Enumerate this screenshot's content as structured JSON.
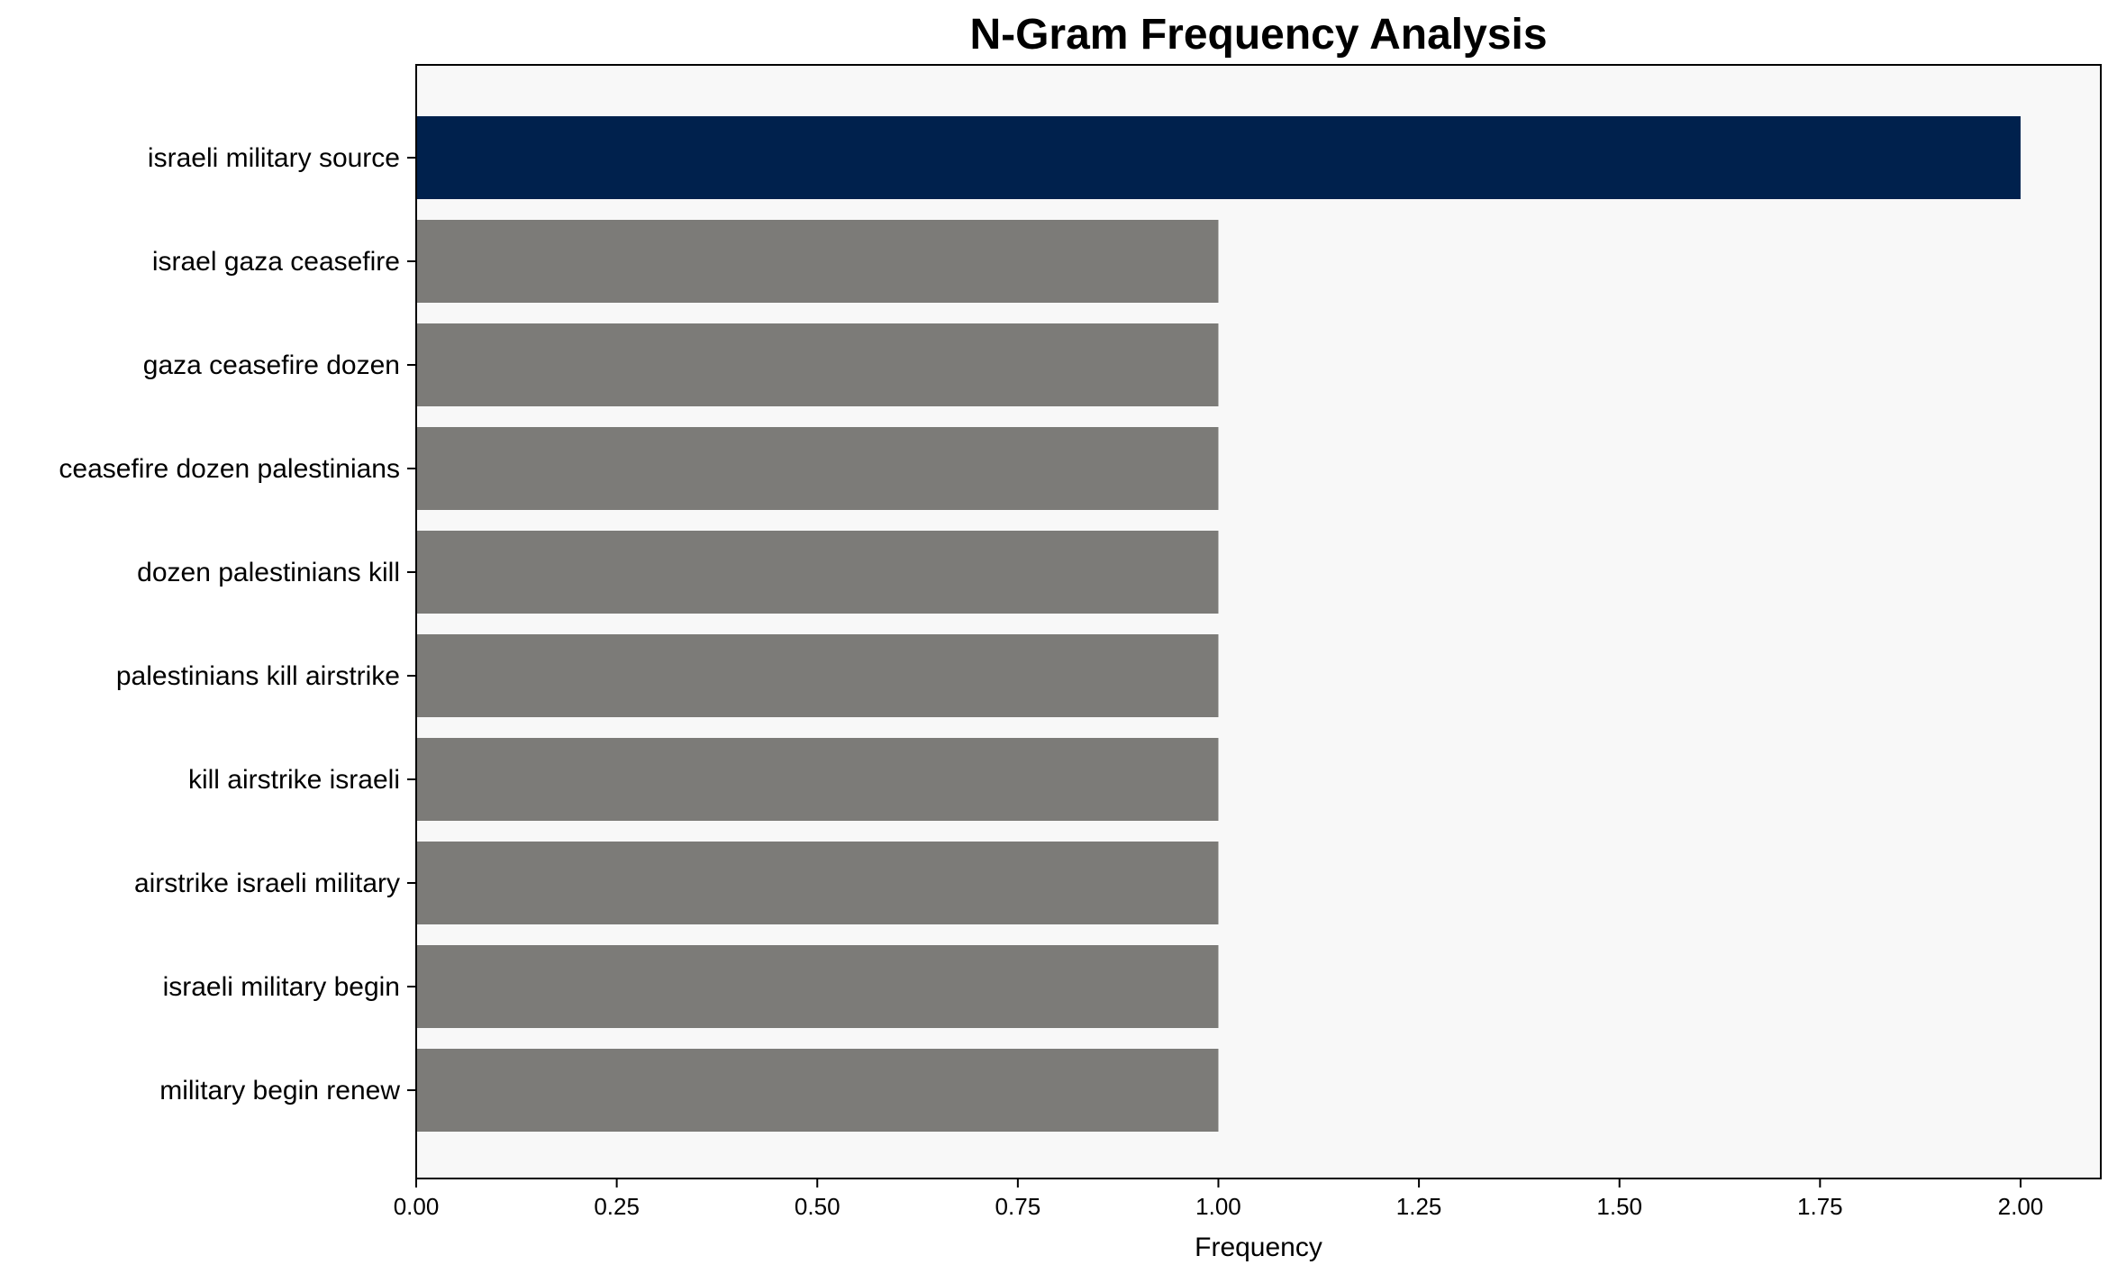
{
  "chart_data": {
    "type": "bar",
    "orientation": "horizontal",
    "title": "N-Gram Frequency Analysis",
    "xlabel": "Frequency",
    "ylabel": "",
    "xlim": [
      0,
      2.1
    ],
    "xticks": [
      "0.00",
      "0.25",
      "0.50",
      "0.75",
      "1.00",
      "1.25",
      "1.50",
      "1.75",
      "2.00"
    ],
    "grid": false,
    "categories": [
      "israeli military source",
      "israel gaza ceasefire",
      "gaza ceasefire dozen",
      "ceasefire dozen palestinians",
      "dozen palestinians kill",
      "palestinians kill airstrike",
      "kill airstrike israeli",
      "airstrike israeli military",
      "israeli military begin",
      "military begin renew"
    ],
    "values": [
      2,
      1,
      1,
      1,
      1,
      1,
      1,
      1,
      1,
      1
    ],
    "colors": {
      "highlight": "#00214d",
      "default": "#7c7b78",
      "plot_background": "#f8f8f8"
    }
  }
}
